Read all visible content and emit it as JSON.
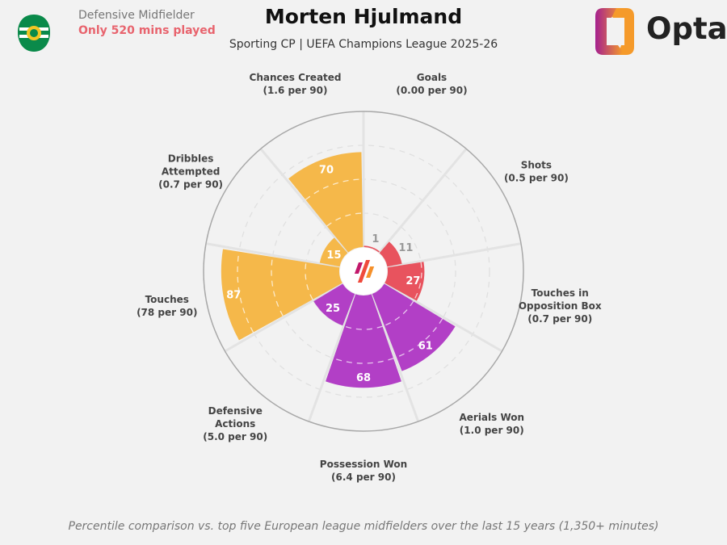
{
  "header": {
    "role": "Defensive Midfielder",
    "minutes_note": "Only 520 mins played",
    "title": "Morten Hjulmand",
    "subtitle": "Sporting CP | UEFA Champions League 2025-26",
    "brand": "Opta",
    "club_crest_text": "SPORTING PORTUGAL"
  },
  "footer": "Percentile comparison vs. top five European league midfielders over the last 15 years (1,350+ minutes)",
  "colors": {
    "attack": "#e8535e",
    "defence": "#b23fc6",
    "possession": "#f5b84a",
    "background": "#f2f2f2"
  },
  "chart_data": {
    "type": "polar-bar",
    "range": [
      0,
      100
    ],
    "gridlines": [
      25,
      50,
      75,
      100
    ],
    "categories": [
      {
        "label": [
          "Goals"
        ],
        "per90": "(0.00 per 90)",
        "value": 1,
        "group": "attack"
      },
      {
        "label": [
          "Shots"
        ],
        "per90": "(0.5 per 90)",
        "value": 11,
        "group": "attack"
      },
      {
        "label": [
          "Touches in",
          "Opposition Box"
        ],
        "per90": "(0.7 per 90)",
        "value": 27,
        "group": "attack"
      },
      {
        "label": [
          "Aerials Won"
        ],
        "per90": "(1.0 per 90)",
        "value": 61,
        "group": "defence"
      },
      {
        "label": [
          "Possession Won"
        ],
        "per90": "(6.4 per 90)",
        "value": 68,
        "group": "defence"
      },
      {
        "label": [
          "Defensive",
          "Actions"
        ],
        "per90": "(5.0 per 90)",
        "value": 25,
        "group": "defence"
      },
      {
        "label": [
          "Touches"
        ],
        "per90": "(78 per 90)",
        "value": 87,
        "group": "possession"
      },
      {
        "label": [
          "Dribbles",
          "Attempted"
        ],
        "per90": "(0.7 per 90)",
        "value": 15,
        "group": "possession"
      },
      {
        "label": [
          "Chances Created"
        ],
        "per90": "(1.6 per 90)",
        "value": 70,
        "group": "possession"
      }
    ]
  }
}
